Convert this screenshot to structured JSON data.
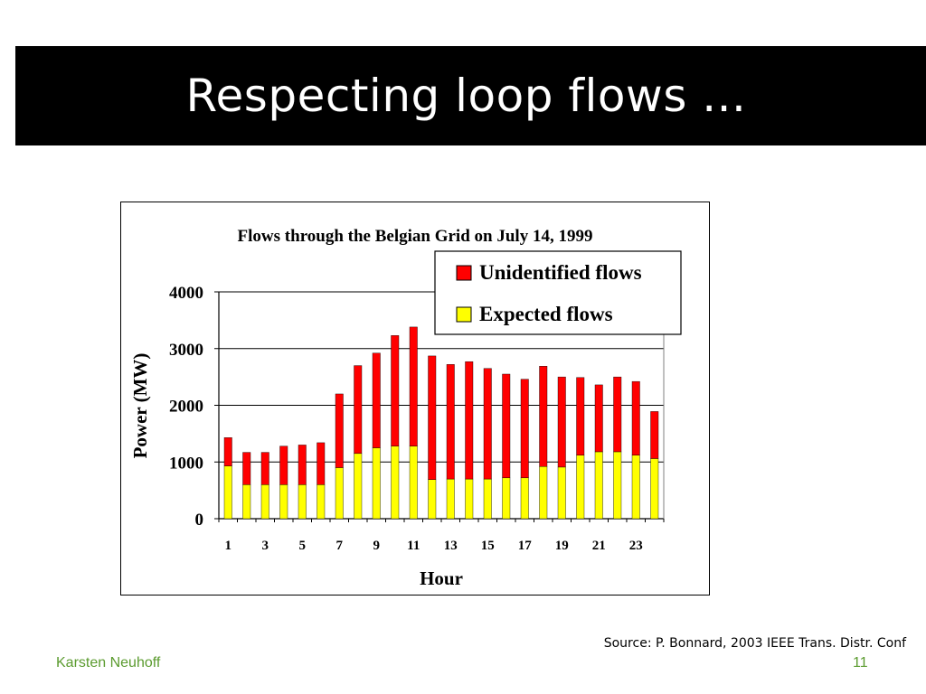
{
  "slide": {
    "title": "Respecting loop flows ...",
    "source": "Source: P. Bonnard, 2003 IEEE Trans. Distr. Conf",
    "author": "Karsten Neuhoff",
    "page_number": "11"
  },
  "colors": {
    "expected": "#ffff00",
    "unidentified": "#ff0000",
    "footer_text": "#5b9b2f"
  },
  "chart_data": {
    "type": "bar",
    "stacked": true,
    "title": "Flows through the Belgian Grid on July 14, 1999",
    "xlabel": "Hour",
    "ylabel": "Power (MW)",
    "ylim": [
      0,
      4000
    ],
    "yticks": [
      "0",
      "1000",
      "2000",
      "3000",
      "4000"
    ],
    "xtick_labels": [
      "1",
      "3",
      "5",
      "7",
      "9",
      "11",
      "13",
      "15",
      "17",
      "19",
      "21",
      "23"
    ],
    "categories": [
      1,
      2,
      3,
      4,
      5,
      6,
      7,
      8,
      9,
      10,
      11,
      12,
      13,
      14,
      15,
      16,
      17,
      18,
      19,
      20,
      21,
      22,
      23,
      24
    ],
    "series": [
      {
        "name": "Expected flows",
        "values": [
          930,
          600,
          600,
          600,
          600,
          600,
          900,
          1150,
          1250,
          1280,
          1280,
          690,
          700,
          700,
          700,
          720,
          720,
          920,
          910,
          1120,
          1180,
          1180,
          1120,
          1060
        ]
      },
      {
        "name": "Unidentified flows",
        "values": [
          500,
          570,
          570,
          680,
          700,
          740,
          1300,
          1550,
          1670,
          1950,
          2100,
          2180,
          2020,
          2070,
          1950,
          1830,
          1740,
          1770,
          1590,
          1370,
          1180,
          1320,
          1300,
          830
        ]
      }
    ],
    "legend_position": "top-right",
    "grid": true
  }
}
